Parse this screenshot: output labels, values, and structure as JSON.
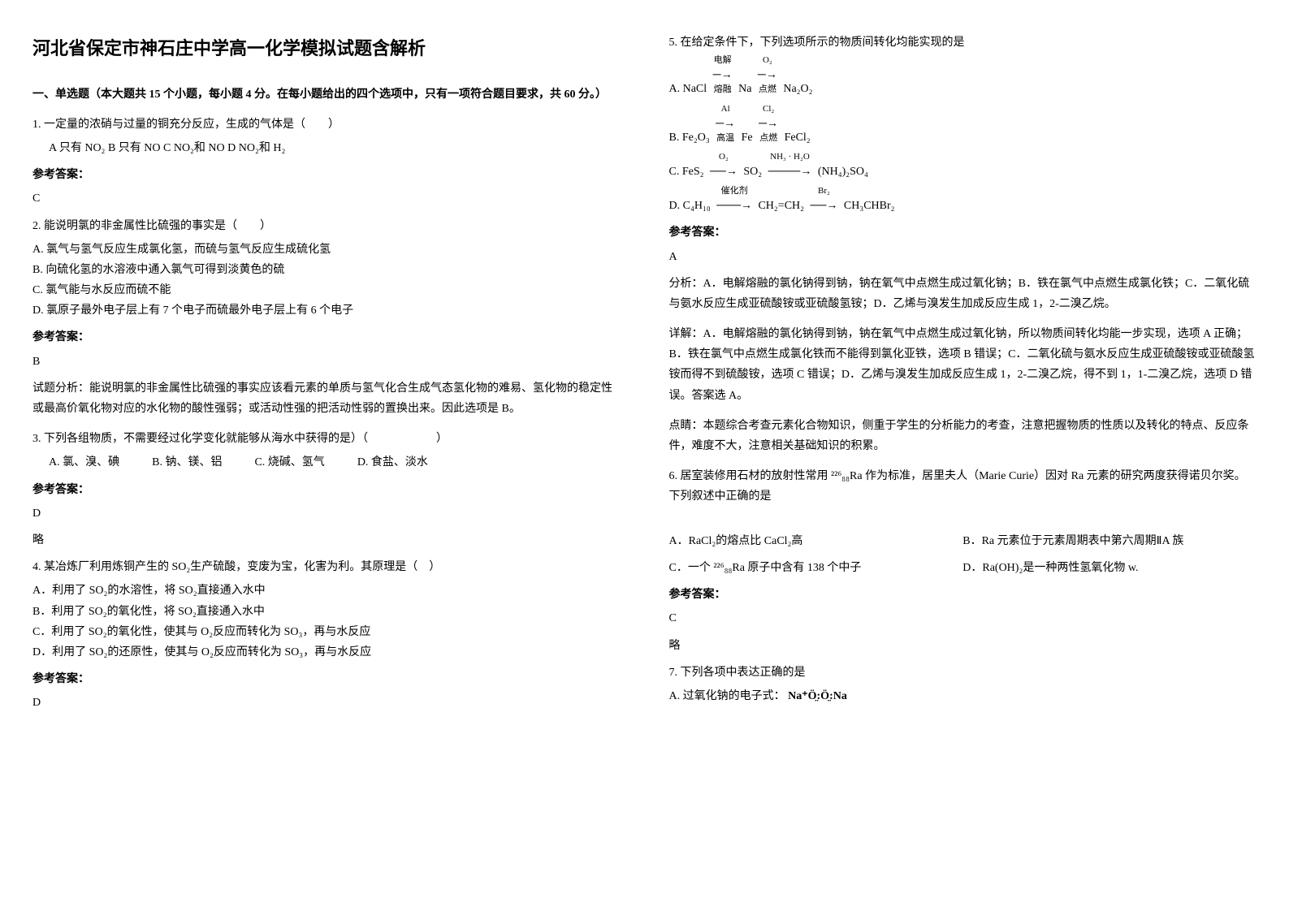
{
  "title": "河北省保定市神石庄中学高一化学模拟试题含解析",
  "section1_header": "一、单选题（本大题共 15 个小题，每小题 4 分。在每小题给出的四个选项中，只有一项符合题目要求，共 60 分。）",
  "q1": {
    "text": "1. 一定量的浓硝与过量的铜充分反应，生成的气体是（　　）",
    "opts": "A  只有 NO₂    B  只有 NO    C  NO₂和 NO    D  NO₂和 H₂",
    "answer_label": "参考答案：",
    "answer": "C"
  },
  "q2": {
    "text": "2. 能说明氯的非金属性比硫强的事实是（　　）",
    "optA": "A. 氯气与氢气反应生成氯化氢，而硫与氢气反应生成硫化氢",
    "optB": "B. 向硫化氢的水溶液中通入氯气可得到淡黄色的硫",
    "optC": "C. 氯气能与水反应而硫不能",
    "optD": "D. 氯原子最外电子层上有 7 个电子而硫最外电子层上有 6 个电子",
    "answer_label": "参考答案：",
    "answer": "B",
    "explanation": "试题分析：能说明氯的非金属性比硫强的事实应该看元素的单质与氢气化合生成气态氢化物的难易、氢化物的稳定性或最高价氧化物对应的水化物的酸性强弱；或活动性强的把活动性弱的置换出来。因此选项是 B。"
  },
  "q3": {
    "text": "3. 下列各组物质，不需要经过化学变化就能够从海水中获得的是）（　　　　　　）",
    "optA": "A. 氯、溴、碘",
    "optB": "B. 钠、镁、铝",
    "optC": "C. 烧碱、氢气",
    "optD": "D. 食盐、淡水",
    "answer_label": "参考答案：",
    "answer": "D",
    "note": "略"
  },
  "q4": {
    "text": "4. 某冶炼厂利用炼铜产生的 SO₂生产硫酸，变废为宝，化害为利。其原理是（　）",
    "optA": "A．利用了 SO₂的水溶性，将 SO₂直接通入水中",
    "optB": "B．利用了 SO₂的氧化性，将 SO₂直接通入水中",
    "optC": "C．利用了 SO₂的氧化性，使其与 O₂反应而转化为 SO₃，再与水反应",
    "optD": "D．利用了 SO₂的还原性，使其与 O₂反应而转化为 SO₃，再与水反应",
    "answer_label": "参考答案：",
    "answer": "D"
  },
  "q5": {
    "text": "5. 在给定条件下，下列选项所示的物质间转化均能实现的是",
    "lineA_prefix": "A. NaCl",
    "lineA_arr1_top": "电解",
    "lineA_arr1_bot": "熔融",
    "lineA_mid": "Na",
    "lineA_arr2_top": "O₂",
    "lineA_arr2_bot": "点燃",
    "lineA_end": "Na₂O₂",
    "lineB_prefix": "B. Fe₂O₃",
    "lineB_arr1_top": "Al",
    "lineB_arr1_bot": "高温",
    "lineB_mid": "Fe",
    "lineB_arr2_top": "Cl₂",
    "lineB_arr2_bot": "点燃",
    "lineB_end": "FeCl₂",
    "lineC_prefix": "C. FeS₂",
    "lineC_arr1": "O₂",
    "lineC_mid": "SO₂",
    "lineC_arr2": "NH₃ · H₂O",
    "lineC_end": "(NH₄)₂SO₄",
    "lineD_prefix": "D. C₄H₁₀",
    "lineD_arr1": "催化剂",
    "lineD_mid": "CH₂=CH₂",
    "lineD_arr2": "Br₂",
    "lineD_end": "CH₃CHBr₂",
    "answer_label": "参考答案：",
    "answer": "A",
    "analysis": "分析：A．电解熔融的氯化钠得到钠，钠在氧气中点燃生成过氧化钠；B．铁在氯气中点燃生成氯化铁；C．二氧化硫与氨水反应生成亚硫酸铵或亚硫酸氢铵；D．乙烯与溴发生加成反应生成 1，2-二溴乙烷。",
    "detail": "详解：A．电解熔融的氯化钠得到钠，钠在氧气中点燃生成过氧化钠，所以物质间转化均能一步实现，选项 A 正确；B．铁在氯气中点燃生成氯化铁而不能得到氯化亚铁，选项 B 错误；C．二氧化硫与氨水反应生成亚硫酸铵或亚硫酸氢铵而得不到硫酸铵，选项 C 错误；D．乙烯与溴发生加成反应生成 1，2-二溴乙烷，得不到 1，1-二溴乙烷，选项 D 错误。答案选 A。",
    "tip": "点睛：本题综合考查元素化合物知识，侧重于学生的分析能力的考查，注意把握物质的性质以及转化的特点、反应条件，难度不大，注意相关基础知识的积累。"
  },
  "q6": {
    "text": "6. 居室装修用石材的放射性常用 ²²⁶₈₈Ra 作为标准，居里夫人（Marie Curie）因对 Ra 元素的研究两度获得诺贝尔奖。下列叙述中正确的是",
    "optA": "A．RaCl₂的熔点比 CaCl₂高",
    "optB": "B．Ra 元素位于元素周期表中第六周期ⅡA 族",
    "optC": "C．一个 ²²⁶₈₈Ra 原子中含有 138 个中子",
    "optD": "D．Ra(OH)₂是一种两性氢氧化物 w.",
    "answer_label": "参考答案：",
    "answer": "C",
    "note": "略"
  },
  "q7": {
    "text": "7. 下列各项中表达正确的是",
    "optA_prefix": "A. 过氧化钠的电子式：",
    "optA_formula": "Na⁺Ö̤:Ö̤:Na"
  }
}
